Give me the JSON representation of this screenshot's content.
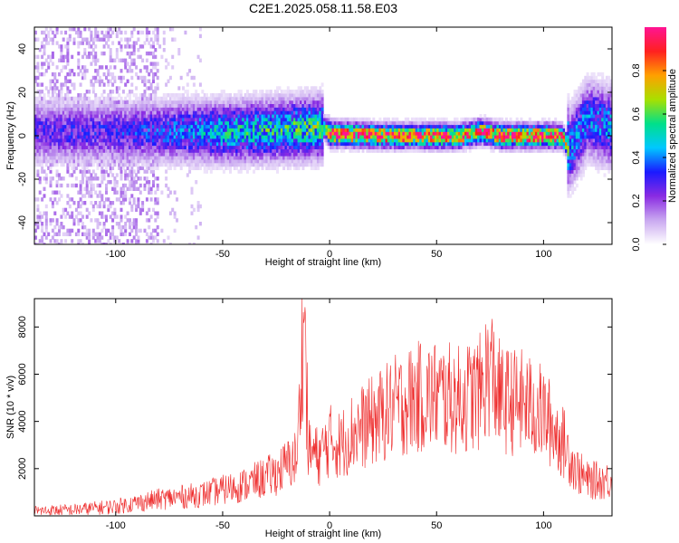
{
  "title": "C2E1.2025.058.11.58.E03",
  "colors": {
    "snr_line": "#ee2a2a",
    "axis": "#000000",
    "colormap": [
      "#ffffff",
      "#c9a8f0",
      "#8a2be2",
      "#1a1aff",
      "#00c8ff",
      "#00e08a",
      "#a8e000",
      "#ffa000",
      "#ff2020",
      "#ff1493"
    ]
  },
  "chart_data": [
    {
      "type": "heatmap",
      "xlabel": "Height of straight line (km)",
      "ylabel": "Frequency (Hz)",
      "xlim": [
        -138,
        132
      ],
      "ylim": [
        -50,
        50
      ],
      "xticks": [
        -100,
        -50,
        0,
        50,
        100
      ],
      "yticks": [
        -40,
        -20,
        0,
        20,
        40
      ],
      "colorbar": {
        "label": "Normalized spectral amplitude",
        "range": [
          0,
          1
        ],
        "ticks": [
          "0.0",
          "0.2",
          "0.4",
          "0.6",
          "0.8"
        ],
        "tick_values": [
          0.0,
          0.2,
          0.4,
          0.6,
          0.8
        ]
      },
      "ridge": {
        "x": [
          -110,
          -80,
          -50,
          -20,
          -3,
          0,
          30,
          60,
          70,
          80,
          108,
          112,
          120,
          132
        ],
        "freq_hz": [
          2,
          2,
          2,
          3,
          4,
          1,
          0,
          0,
          2,
          0,
          0,
          -6,
          8,
          4
        ],
        "peak_amplitude": [
          0.3,
          0.35,
          0.5,
          0.55,
          0.6,
          1.0,
          0.95,
          0.95,
          0.9,
          1.0,
          1.0,
          0.45,
          0.4,
          0.45
        ]
      }
    },
    {
      "type": "line",
      "xlabel": "Height of straight line (km)",
      "ylabel": "SNR (10 * v/v)",
      "xlim": [
        -138,
        132
      ],
      "ylim": [
        0,
        9200
      ],
      "xticks": [
        -100,
        -50,
        0,
        50,
        100
      ],
      "yticks": [
        2000,
        4000,
        6000,
        8000
      ],
      "series": [
        {
          "x": [
            -138,
            -120,
            -100,
            -80,
            -60,
            -40,
            -25,
            -15,
            -12,
            -10,
            -5,
            0,
            5,
            10,
            20,
            30,
            40,
            50,
            60,
            70,
            75,
            80,
            90,
            100,
            110,
            115,
            120,
            132
          ],
          "y": [
            200,
            250,
            400,
            700,
            900,
            1300,
            1800,
            2500,
            9200,
            2800,
            2500,
            3200,
            3000,
            3500,
            4000,
            4600,
            5000,
            5100,
            4900,
            5200,
            6300,
            4900,
            4800,
            4300,
            3000,
            2000,
            1500,
            1500
          ]
        }
      ]
    }
  ]
}
